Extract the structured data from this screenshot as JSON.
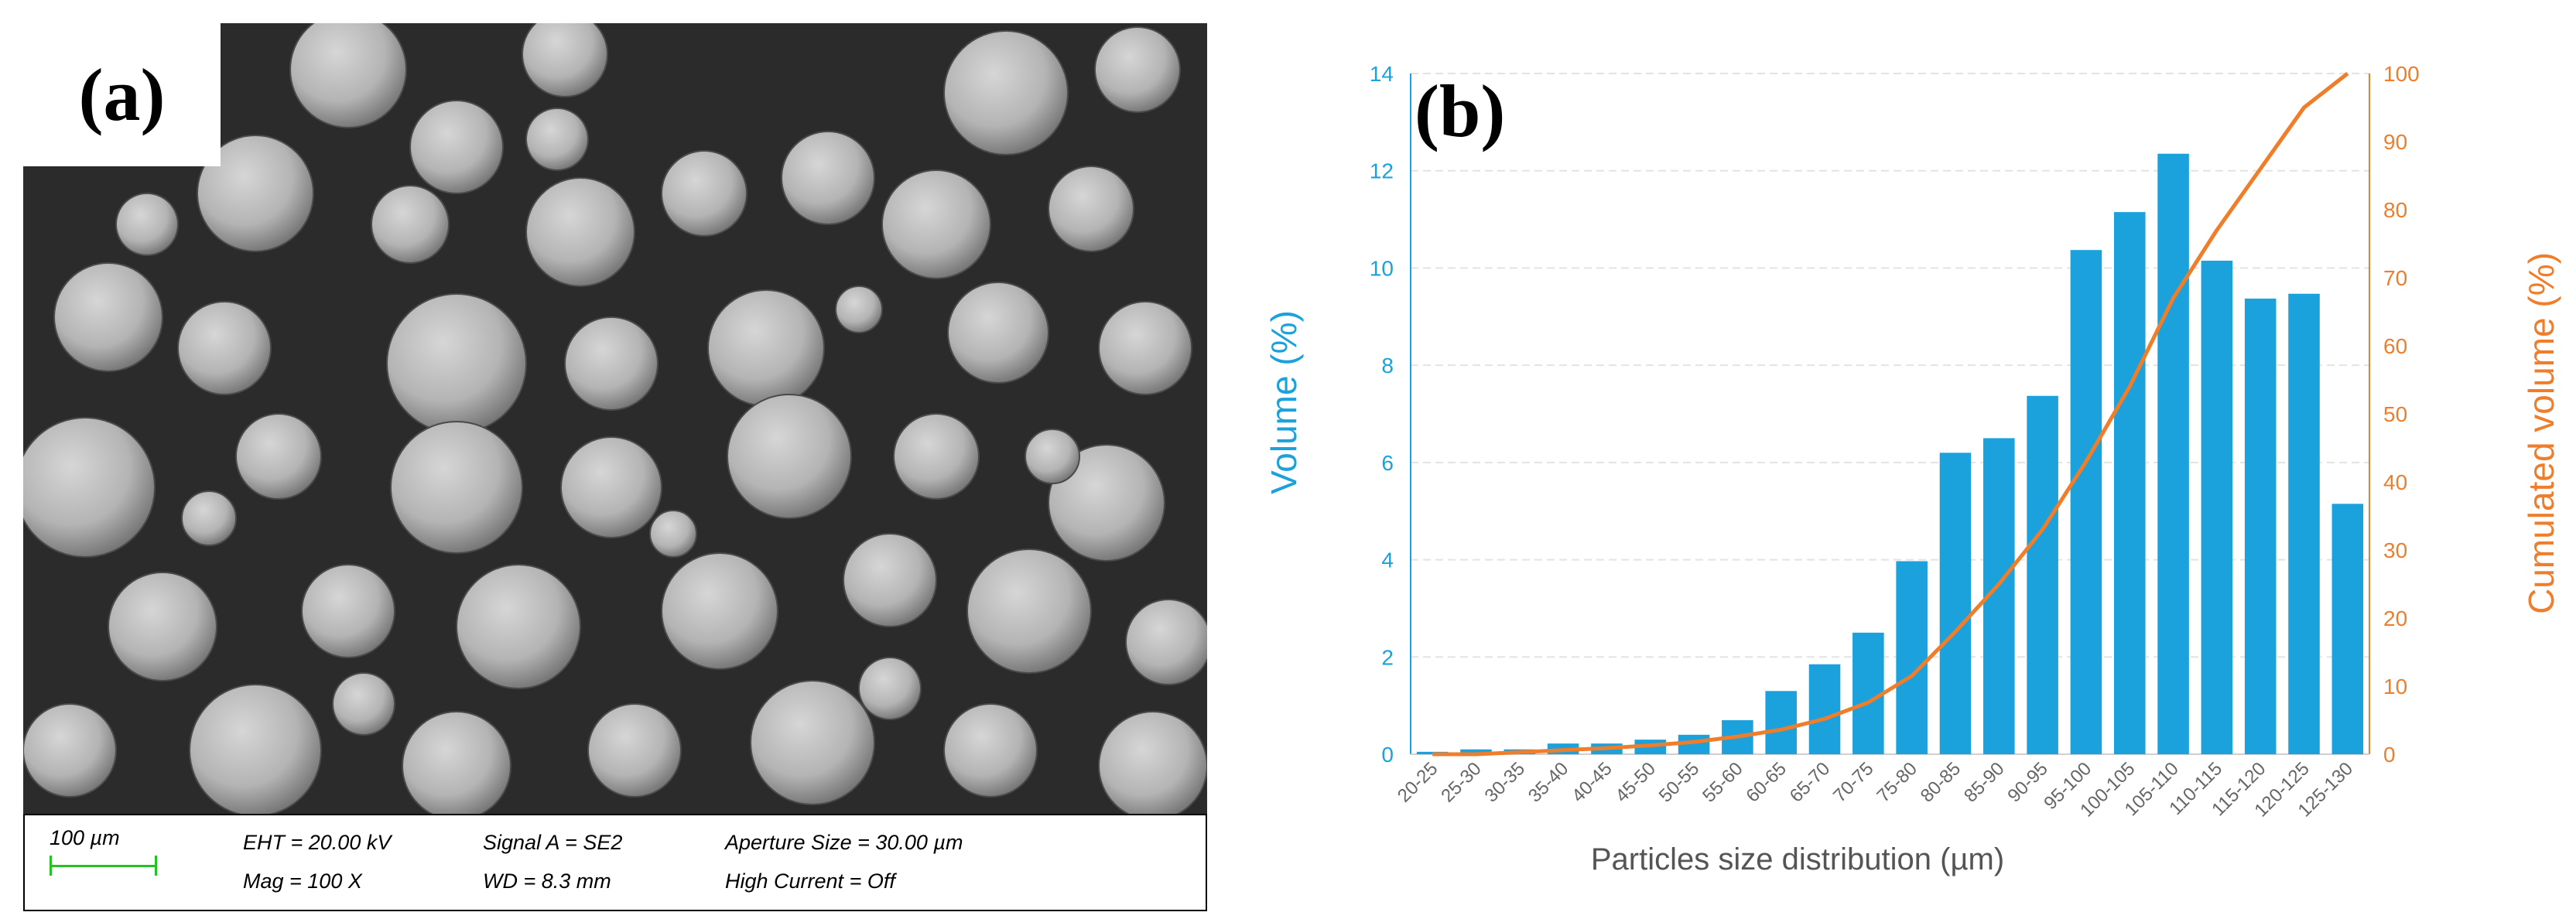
{
  "panel_a": {
    "label": "(a)",
    "info": {
      "scale": "100 µm",
      "eht": "EHT = 20.00 kV",
      "signal": "Signal A = SE2",
      "aperture": "Aperture Size = 30.00 µm",
      "mag": "Mag =    100 X",
      "wd": "WD =  8.3 mm",
      "current": "High Current = Off"
    },
    "scalebar_color": "#22c322"
  },
  "panel_b": {
    "label": "(b)"
  },
  "chart_data": {
    "type": "bar",
    "categories": [
      "20-25",
      "25-30",
      "30-35",
      "35-40",
      "40-45",
      "45-50",
      "50-55",
      "55-60",
      "60-65",
      "65-70",
      "70-75",
      "75-80",
      "80-85",
      "85-90",
      "90-95",
      "95-100",
      "100-105",
      "105-110",
      "110-115",
      "115-120",
      "120-125",
      "125-130"
    ],
    "series": [
      {
        "type": "bar",
        "axis": "left",
        "color": "#1ba1dc",
        "values": [
          0.05,
          0.1,
          0.1,
          0.22,
          0.22,
          0.3,
          0.4,
          0.7,
          1.3,
          1.85,
          2.5,
          3.97,
          6.2,
          6.5,
          7.37,
          10.37,
          11.15,
          12.35,
          10.15,
          9.37,
          9.47,
          5.15
        ]
      },
      {
        "type": "line",
        "axis": "right",
        "color": "#f07d2a",
        "x": [
          "20-25",
          "25-30",
          "30-35",
          "35-40",
          "40-45",
          "45-50",
          "50-55",
          "55-60",
          "60-65",
          "65-70",
          "70-75",
          "75-80",
          "80-85",
          "85-90",
          "90-95",
          "95-100",
          "100-105",
          "105-110",
          "110-115",
          "115-120",
          "120-125",
          "125-130"
        ],
        "values": [
          0,
          0,
          0.3,
          0.6,
          0.9,
          1.3,
          1.8,
          2.6,
          3.6,
          5.2,
          7.6,
          11.5,
          18,
          25,
          33,
          43,
          54,
          67,
          77,
          86,
          95,
          100
        ]
      }
    ],
    "xlabel": "Particles size distribution (µm)",
    "ylabel": "Volume (%)",
    "y2label": "Cumulated volume (%)",
    "ylim": [
      0,
      14
    ],
    "y2lim": [
      0,
      100
    ],
    "yticks": [
      "0",
      "2",
      "4",
      "6",
      "8",
      "10",
      "12",
      "14"
    ],
    "y2ticks": [
      "0",
      "10",
      "20",
      "30",
      "40",
      "50",
      "60",
      "70",
      "80",
      "90",
      "100"
    ],
    "grid": true
  }
}
